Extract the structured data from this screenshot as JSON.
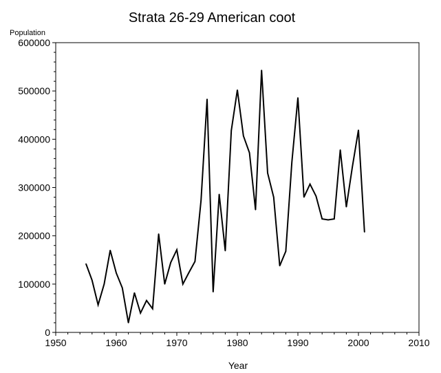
{
  "chart_data": {
    "type": "line",
    "title": "Strata 26-29   American coot",
    "xlabel": "Year",
    "ylabel": "Population",
    "xlim": [
      1950,
      2010
    ],
    "ylim": [
      0,
      600000
    ],
    "xticks": [
      1950,
      1960,
      1970,
      1980,
      1990,
      2000,
      2010
    ],
    "yticks": [
      0,
      100000,
      200000,
      300000,
      400000,
      500000,
      600000
    ],
    "xtick_labels": [
      "1950",
      "1960",
      "1970",
      "1980",
      "1990",
      "2000",
      "2010"
    ],
    "ytick_labels": [
      "0",
      "100000",
      "200000",
      "300000",
      "400000",
      "500000",
      "600000"
    ],
    "grid": false,
    "series": [
      {
        "color": "#000000",
        "points": [
          [
            1955,
            142000
          ],
          [
            1956,
            108000
          ],
          [
            1957,
            57000
          ],
          [
            1958,
            100000
          ],
          [
            1959,
            170000
          ],
          [
            1960,
            123000
          ],
          [
            1961,
            92000
          ],
          [
            1962,
            20000
          ],
          [
            1963,
            82000
          ],
          [
            1964,
            40000
          ],
          [
            1965,
            66000
          ],
          [
            1966,
            49000
          ],
          [
            1967,
            204000
          ],
          [
            1968,
            100000
          ],
          [
            1969,
            145000
          ],
          [
            1970,
            171000
          ],
          [
            1971,
            100000
          ],
          [
            1972,
            124000
          ],
          [
            1973,
            147000
          ],
          [
            1974,
            273000
          ],
          [
            1975,
            483000
          ],
          [
            1976,
            84000
          ],
          [
            1977,
            286000
          ],
          [
            1978,
            169000
          ],
          [
            1979,
            418000
          ],
          [
            1980,
            502000
          ],
          [
            1981,
            407000
          ],
          [
            1982,
            372000
          ],
          [
            1983,
            254000
          ],
          [
            1984,
            543000
          ],
          [
            1985,
            330000
          ],
          [
            1986,
            280000
          ],
          [
            1987,
            138000
          ],
          [
            1988,
            168000
          ],
          [
            1989,
            352000
          ],
          [
            1990,
            486000
          ],
          [
            1991,
            280000
          ],
          [
            1992,
            307000
          ],
          [
            1993,
            282000
          ],
          [
            1994,
            235000
          ],
          [
            1995,
            233000
          ],
          [
            1996,
            235000
          ],
          [
            1997,
            378000
          ],
          [
            1998,
            260000
          ],
          [
            1999,
            343000
          ],
          [
            2000,
            419000
          ],
          [
            2001,
            208000
          ]
        ]
      }
    ]
  }
}
